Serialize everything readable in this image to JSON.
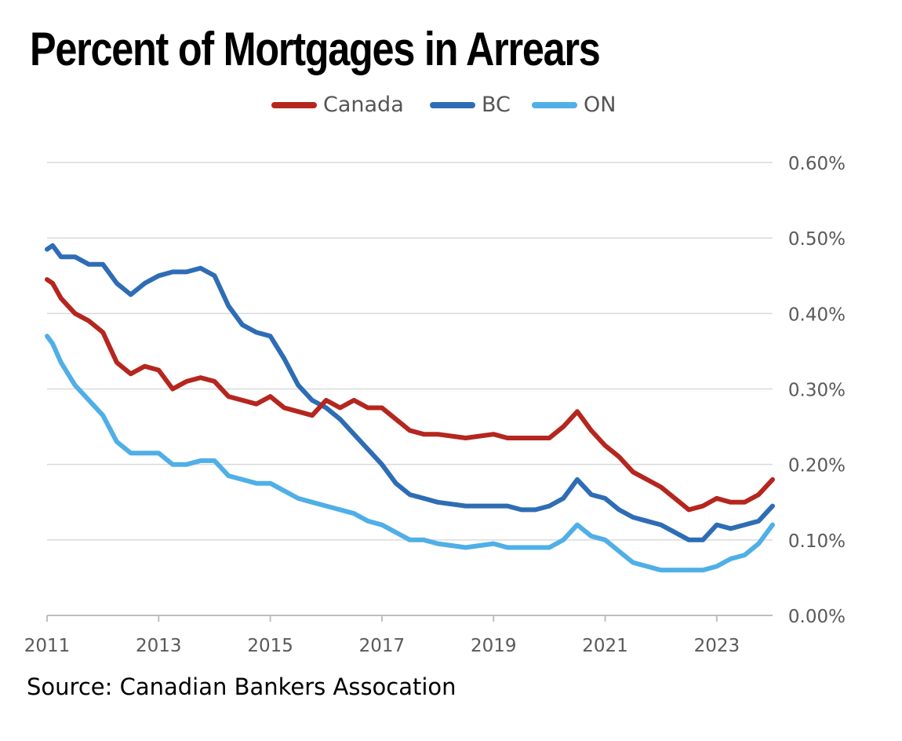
{
  "title": "Percent of Mortgages in Arrears",
  "source": "Source: Canadian Bankers Assocation",
  "chart_data": {
    "type": "line",
    "title": "Percent of Mortgages in Arrears",
    "xlabel": "",
    "ylabel": "",
    "xlim": [
      2011.0,
      2024.0
    ],
    "ylim": [
      0,
      0.6
    ],
    "x_ticks": [
      "2011",
      "2013",
      "2015",
      "2017",
      "2019",
      "2021",
      "2023"
    ],
    "y_ticks": [
      "0.00%",
      "0.10%",
      "0.20%",
      "0.30%",
      "0.40%",
      "0.50%",
      "0.60%"
    ],
    "grid": true,
    "legend_position": "top",
    "series": [
      {
        "name": "Canada",
        "color": "#b5261e",
        "x": [
          2011.0,
          2011.1,
          2011.25,
          2011.5,
          2011.75,
          2012.0,
          2012.25,
          2012.5,
          2012.75,
          2013.0,
          2013.25,
          2013.5,
          2013.75,
          2014.0,
          2014.25,
          2014.5,
          2014.75,
          2015.0,
          2015.25,
          2015.5,
          2015.75,
          2016.0,
          2016.25,
          2016.5,
          2016.75,
          2017.0,
          2017.25,
          2017.5,
          2017.75,
          2018.0,
          2018.5,
          2019.0,
          2019.25,
          2019.5,
          2019.75,
          2020.0,
          2020.25,
          2020.5,
          2020.75,
          2021.0,
          2021.25,
          2021.5,
          2021.75,
          2022.0,
          2022.25,
          2022.5,
          2022.75,
          2023.0,
          2023.25,
          2023.5,
          2023.75,
          2024.0
        ],
        "values": [
          0.445,
          0.44,
          0.42,
          0.4,
          0.39,
          0.375,
          0.335,
          0.32,
          0.33,
          0.325,
          0.3,
          0.31,
          0.315,
          0.31,
          0.29,
          0.285,
          0.28,
          0.29,
          0.275,
          0.27,
          0.265,
          0.285,
          0.275,
          0.285,
          0.275,
          0.275,
          0.26,
          0.245,
          0.24,
          0.24,
          0.235,
          0.24,
          0.235,
          0.235,
          0.235,
          0.235,
          0.25,
          0.27,
          0.245,
          0.225,
          0.21,
          0.19,
          0.18,
          0.17,
          0.155,
          0.14,
          0.145,
          0.155,
          0.15,
          0.15,
          0.16,
          0.18
        ]
      },
      {
        "name": "BC",
        "color": "#2e6db5",
        "x": [
          2011.0,
          2011.1,
          2011.25,
          2011.5,
          2011.75,
          2012.0,
          2012.25,
          2012.5,
          2012.75,
          2013.0,
          2013.25,
          2013.5,
          2013.75,
          2014.0,
          2014.25,
          2014.5,
          2014.75,
          2015.0,
          2015.25,
          2015.5,
          2015.75,
          2016.0,
          2016.25,
          2016.5,
          2016.75,
          2017.0,
          2017.25,
          2017.5,
          2017.75,
          2018.0,
          2018.5,
          2019.0,
          2019.25,
          2019.5,
          2019.75,
          2020.0,
          2020.25,
          2020.5,
          2020.75,
          2021.0,
          2021.25,
          2021.5,
          2021.75,
          2022.0,
          2022.25,
          2022.5,
          2022.75,
          2023.0,
          2023.25,
          2023.5,
          2023.75,
          2024.0
        ],
        "values": [
          0.485,
          0.49,
          0.475,
          0.475,
          0.465,
          0.465,
          0.44,
          0.425,
          0.44,
          0.45,
          0.455,
          0.455,
          0.46,
          0.45,
          0.41,
          0.385,
          0.375,
          0.37,
          0.34,
          0.305,
          0.285,
          0.275,
          0.26,
          0.24,
          0.22,
          0.2,
          0.175,
          0.16,
          0.155,
          0.15,
          0.145,
          0.145,
          0.145,
          0.14,
          0.14,
          0.145,
          0.155,
          0.18,
          0.16,
          0.155,
          0.14,
          0.13,
          0.125,
          0.12,
          0.11,
          0.1,
          0.1,
          0.12,
          0.115,
          0.12,
          0.125,
          0.145
        ]
      },
      {
        "name": "ON",
        "color": "#4fafe6",
        "x": [
          2011.0,
          2011.1,
          2011.25,
          2011.5,
          2011.75,
          2012.0,
          2012.25,
          2012.5,
          2012.75,
          2013.0,
          2013.25,
          2013.5,
          2013.75,
          2014.0,
          2014.25,
          2014.5,
          2014.75,
          2015.0,
          2015.25,
          2015.5,
          2015.75,
          2016.0,
          2016.25,
          2016.5,
          2016.75,
          2017.0,
          2017.25,
          2017.5,
          2017.75,
          2018.0,
          2018.5,
          2019.0,
          2019.25,
          2019.5,
          2019.75,
          2020.0,
          2020.25,
          2020.5,
          2020.75,
          2021.0,
          2021.25,
          2021.5,
          2021.75,
          2022.0,
          2022.25,
          2022.5,
          2022.75,
          2023.0,
          2023.25,
          2023.5,
          2023.75,
          2024.0
        ],
        "values": [
          0.37,
          0.36,
          0.335,
          0.305,
          0.285,
          0.265,
          0.23,
          0.215,
          0.215,
          0.215,
          0.2,
          0.2,
          0.205,
          0.205,
          0.185,
          0.18,
          0.175,
          0.175,
          0.165,
          0.155,
          0.15,
          0.145,
          0.14,
          0.135,
          0.125,
          0.12,
          0.11,
          0.1,
          0.1,
          0.095,
          0.09,
          0.095,
          0.09,
          0.09,
          0.09,
          0.09,
          0.1,
          0.12,
          0.105,
          0.1,
          0.085,
          0.07,
          0.065,
          0.06,
          0.06,
          0.06,
          0.06,
          0.065,
          0.075,
          0.08,
          0.095,
          0.12
        ]
      }
    ]
  }
}
